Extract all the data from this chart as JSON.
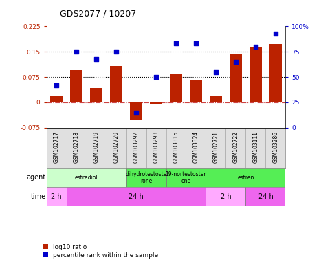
{
  "title": "GDS2077 / 10207",
  "samples": [
    "GSM102717",
    "GSM102718",
    "GSM102719",
    "GSM102720",
    "GSM103292",
    "GSM103293",
    "GSM103315",
    "GSM103324",
    "GSM102721",
    "GSM102722",
    "GSM103111",
    "GSM103286"
  ],
  "log10_ratio": [
    0.018,
    0.095,
    0.042,
    0.108,
    -0.052,
    -0.004,
    0.083,
    0.068,
    0.018,
    0.145,
    0.165,
    0.172
  ],
  "percentile_rank": [
    42,
    75,
    68,
    75,
    15,
    50,
    83,
    83,
    55,
    65,
    80,
    93
  ],
  "bar_color": "#bb2200",
  "dot_color": "#0000cc",
  "ylim_left": [
    -0.075,
    0.225
  ],
  "yticks_left": [
    -0.075,
    0.0,
    0.075,
    0.15,
    0.225
  ],
  "ytick_labels_left": [
    "-0.075",
    "0",
    "0.075",
    "0.15",
    "0.225"
  ],
  "ylim_right": [
    0,
    100
  ],
  "yticks_right": [
    0,
    25,
    50,
    75,
    100
  ],
  "ytick_labels_right": [
    "0",
    "25",
    "50",
    "75",
    "100%"
  ],
  "hlines": [
    0.075,
    0.15
  ],
  "agent_groups": [
    {
      "label": "estradiol",
      "start": 0,
      "end": 4,
      "color": "#ccffcc"
    },
    {
      "label": "dihydrotestoste\nrone",
      "start": 4,
      "end": 6,
      "color": "#55ee55"
    },
    {
      "label": "19-nortestoster\none",
      "start": 6,
      "end": 8,
      "color": "#55ee55"
    },
    {
      "label": "estren",
      "start": 8,
      "end": 12,
      "color": "#55ee55"
    }
  ],
  "time_groups": [
    {
      "label": "2 h",
      "start": 0,
      "end": 1,
      "color": "#ffaaff"
    },
    {
      "label": "24 h",
      "start": 1,
      "end": 8,
      "color": "#ee66ee"
    },
    {
      "label": "2 h",
      "start": 8,
      "end": 10,
      "color": "#ffaaff"
    },
    {
      "label": "24 h",
      "start": 10,
      "end": 12,
      "color": "#ee66ee"
    }
  ],
  "legend_red_label": "log10 ratio",
  "legend_blue_label": "percentile rank within the sample",
  "zero_line_color": "#cc4444",
  "background_color": "#ffffff"
}
